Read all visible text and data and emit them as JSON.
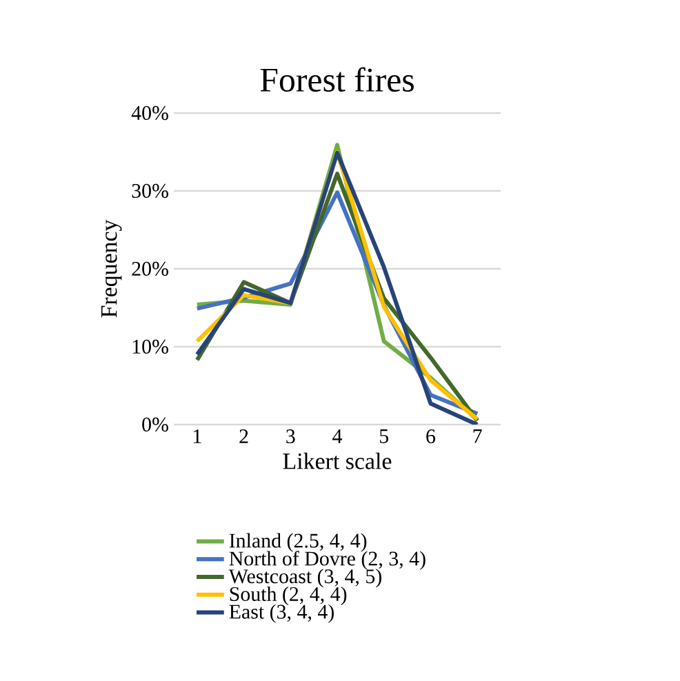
{
  "chart_data": {
    "type": "line",
    "title": "Forest fires",
    "xlabel": "Likert scale",
    "ylabel": "Frequency",
    "categories": [
      "1",
      "2",
      "3",
      "4",
      "5",
      "6",
      "7"
    ],
    "series": [
      {
        "name": "Inland (2.5, 4, 4)",
        "color": "#70ad47",
        "values": [
          15.4,
          15.9,
          15.4,
          35.9,
          10.7,
          6.0,
          0.6
        ]
      },
      {
        "name": "North of Dovre (2, 3, 4)",
        "color": "#4472c4",
        "values": [
          14.9,
          16.3,
          18.1,
          29.8,
          15.3,
          3.8,
          1.4
        ]
      },
      {
        "name": "Westcoast (3, 4, 5)",
        "color": "#43682b",
        "values": [
          8.3,
          18.3,
          15.6,
          32.2,
          16.2,
          8.6,
          0.5
        ]
      },
      {
        "name": "South (2, 4, 4)",
        "color": "#ffc000",
        "values": [
          10.7,
          16.6,
          15.6,
          35.0,
          15.1,
          5.7,
          0.7
        ]
      },
      {
        "name": "East (3, 4, 4)",
        "color": "#264478",
        "values": [
          9.0,
          17.4,
          15.6,
          34.9,
          20.2,
          2.7,
          0.0
        ]
      }
    ],
    "ylim": [
      0,
      40
    ],
    "yticks": [
      {
        "value": 0,
        "label": "0%"
      },
      {
        "value": 10,
        "label": "10%"
      },
      {
        "value": 20,
        "label": "20%"
      },
      {
        "value": 30,
        "label": "30%"
      },
      {
        "value": 40,
        "label": "40%"
      }
    ],
    "grid": "y",
    "legend": "bottom",
    "marker": "none",
    "line_style": "solid"
  }
}
